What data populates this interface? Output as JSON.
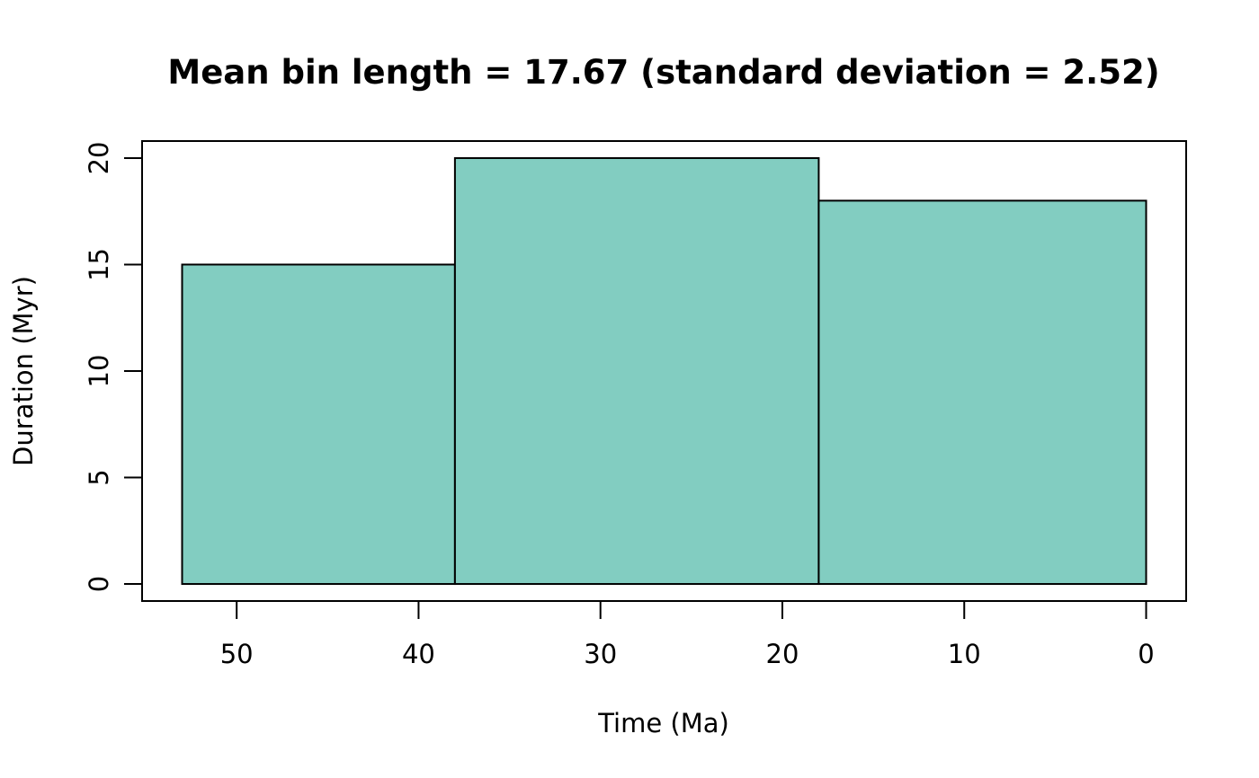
{
  "chart_data": {
    "type": "bar",
    "title": "Mean bin length = 17.67 (standard deviation = 2.52)",
    "xlabel": "Time (Ma)",
    "ylabel": "Duration (Myr)",
    "x_reversed": true,
    "xlim": [
      55.2,
      -2.2
    ],
    "ylim": [
      -0.8,
      20.8
    ],
    "xticks": [
      50,
      40,
      30,
      20,
      10,
      0
    ],
    "yticks": [
      0,
      5,
      10,
      15,
      20
    ],
    "bar_color": "#82CDC1",
    "bars": [
      {
        "start": 53,
        "end": 38,
        "value": 15
      },
      {
        "start": 38,
        "end": 18,
        "value": 20
      },
      {
        "start": 18,
        "end": 0,
        "value": 18
      }
    ],
    "grid": false,
    "legend": "none"
  }
}
